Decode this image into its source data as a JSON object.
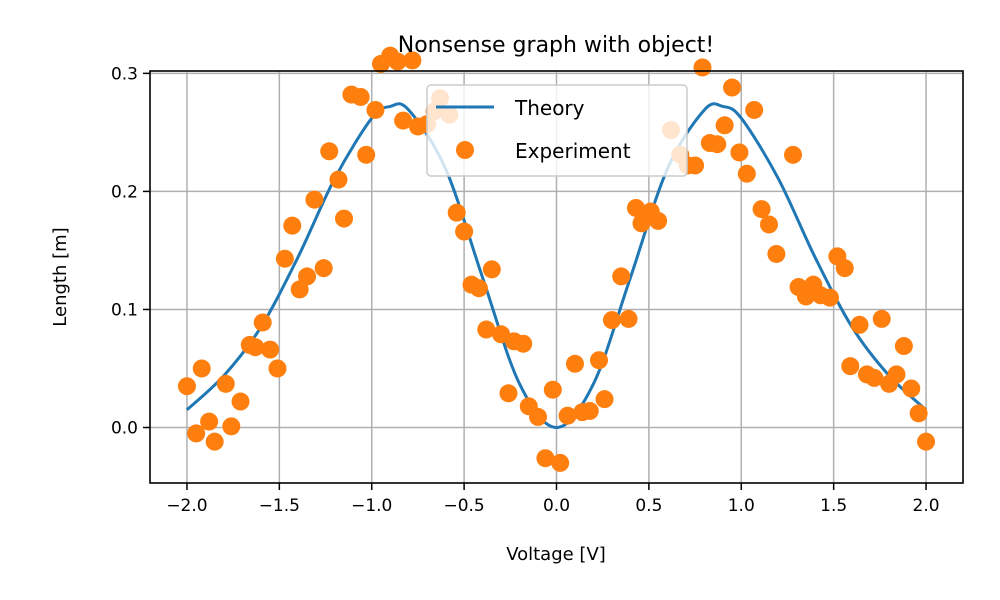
{
  "chart_data": {
    "type": "line+scatter",
    "title": "Nonsense graph with object!",
    "xlabel": "Voltage [V]",
    "ylabel": "Length [m]",
    "xlim": [
      -2.2,
      2.2
    ],
    "ylim": [
      -0.047,
      0.302
    ],
    "grid": true,
    "legend_placement": "upper center",
    "xticks": [
      -2.0,
      -1.5,
      -1.0,
      -0.5,
      0.0,
      0.5,
      1.0,
      1.5,
      2.0
    ],
    "xtick_labels": [
      "−2.0",
      "−1.5",
      "−1.0",
      "−0.5",
      "0.0",
      "0.5",
      "1.0",
      "1.5",
      "2.0"
    ],
    "yticks": [
      0.0,
      0.1,
      0.2,
      0.3
    ],
    "ytick_labels": [
      "0.0",
      "0.1",
      "0.2",
      "0.3"
    ],
    "series": [
      {
        "name": "Theory",
        "kind": "line",
        "color": "#1f77b4",
        "x": [
          -2.0,
          -1.8,
          -1.6,
          -1.4,
          -1.2,
          -1.0,
          -0.9,
          -0.8,
          -0.6,
          -0.4,
          -0.2,
          0.0,
          0.2,
          0.4,
          0.6,
          0.8,
          0.9,
          1.0,
          1.2,
          1.4,
          1.6,
          1.8,
          2.0
        ],
        "y": [
          0.015,
          0.044,
          0.085,
          0.144,
          0.211,
          0.262,
          0.272,
          0.269,
          0.219,
          0.127,
          0.037,
          0.0,
          0.037,
          0.127,
          0.219,
          0.269,
          0.272,
          0.262,
          0.211,
          0.144,
          0.085,
          0.044,
          0.015
        ]
      },
      {
        "name": "Experiment",
        "kind": "scatter",
        "color": "#ff7f0e",
        "x": [
          -2.0,
          -1.95,
          -1.92,
          -1.88,
          -1.85,
          -1.79,
          -1.76,
          -1.71,
          -1.66,
          -1.63,
          -1.59,
          -1.55,
          -1.51,
          -1.47,
          -1.43,
          -1.39,
          -1.35,
          -1.31,
          -1.26,
          -1.23,
          -1.18,
          -1.15,
          -1.11,
          -1.06,
          -1.03,
          -0.98,
          -0.95,
          -0.9,
          -0.86,
          -0.83,
          -0.78,
          -0.75,
          -0.7,
          -0.66,
          -0.63,
          -0.58,
          -0.54,
          -0.5,
          -0.46,
          -0.42,
          -0.38,
          -0.35,
          -0.3,
          -0.26,
          -0.23,
          -0.18,
          -0.15,
          -0.1,
          -0.06,
          -0.02,
          0.02,
          0.06,
          0.1,
          0.14,
          0.18,
          0.23,
          0.26,
          0.3,
          0.35,
          0.39,
          0.43,
          0.46,
          0.51,
          0.55,
          0.62,
          0.67,
          0.71,
          0.75,
          0.79,
          0.83,
          0.87,
          0.91,
          0.95,
          0.99,
          1.03,
          1.07,
          1.11,
          1.15,
          1.19,
          1.28,
          1.31,
          1.35,
          1.39,
          1.43,
          1.48,
          1.52,
          1.56,
          1.59,
          1.64,
          1.68,
          1.72,
          1.76,
          1.8,
          1.84,
          1.88,
          1.92,
          1.96,
          2.0
        ],
        "y": [
          0.035,
          -0.005,
          0.05,
          0.005,
          -0.012,
          0.037,
          0.001,
          0.022,
          0.07,
          0.068,
          0.089,
          0.066,
          0.05,
          0.143,
          0.171,
          0.117,
          0.128,
          0.193,
          0.135,
          0.234,
          0.21,
          0.177,
          0.282,
          0.28,
          0.231,
          0.269,
          0.308,
          0.315,
          0.31,
          0.26,
          0.311,
          0.255,
          0.257,
          0.268,
          0.279,
          0.265,
          0.182,
          0.166,
          0.121,
          0.118,
          0.083,
          0.134,
          0.079,
          0.029,
          0.073,
          0.071,
          0.018,
          0.009,
          -0.026,
          0.032,
          -0.03,
          0.01,
          0.054,
          0.013,
          0.014,
          0.057,
          0.024,
          0.091,
          0.128,
          0.092,
          0.186,
          0.173,
          0.183,
          0.175,
          0.252,
          0.231,
          0.222,
          0.222,
          0.305,
          0.241,
          0.24,
          0.256,
          0.288,
          0.233,
          0.215,
          0.269,
          0.185,
          0.172,
          0.147,
          0.231,
          0.119,
          0.111,
          0.121,
          0.112,
          0.11,
          0.145,
          0.135,
          0.052,
          0.087,
          0.045,
          0.042,
          0.092,
          0.037,
          0.045,
          0.069,
          0.033,
          0.012,
          -0.012
        ]
      }
    ]
  }
}
